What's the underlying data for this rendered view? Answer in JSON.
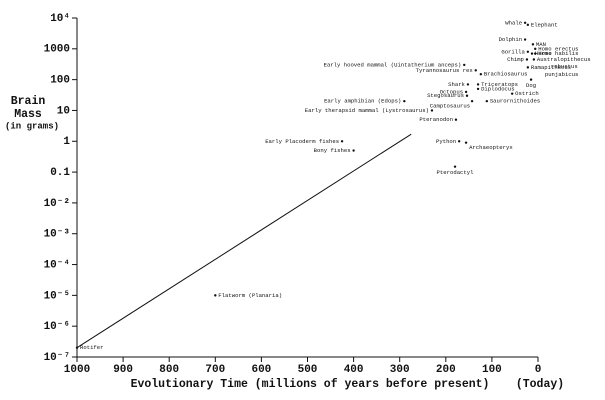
{
  "chart_data": {
    "type": "scatter",
    "ylabel": [
      "Brain",
      "Mass",
      "(in grams)"
    ],
    "xlabel": "Evolutionary Time (millions of years before present)",
    "x_end_note": "(Today)",
    "log_y": true,
    "xlim": [
      1000,
      0
    ],
    "xticks": [
      1000,
      900,
      800,
      700,
      600,
      500,
      400,
      300,
      200,
      100,
      0
    ],
    "ylim": [
      1e-07,
      10000
    ],
    "yticks": [
      {
        "value": 10000,
        "label": "10⁴"
      },
      1000,
      100,
      10,
      1,
      0.1,
      {
        "value": 0.01,
        "label": "10⁻²"
      },
      {
        "value": 0.001,
        "label": "10⁻³"
      },
      {
        "value": 0.0001,
        "label": "10⁻⁴"
      },
      {
        "value": 1e-05,
        "label": "10⁻⁵"
      },
      {
        "value": 1e-06,
        "label": "10⁻⁶"
      },
      {
        "value": 1e-07,
        "label": "10⁻⁷"
      }
    ],
    "color": "#111111",
    "point_labels": [
      "Rotifer",
      "Flatworm (Planaria)",
      "Bony fishes",
      "Early Placoderm fishes",
      "Early amphibian (Edops)",
      "Early therapsid mammal (Lystrosaurus)",
      "Early hooved mammal (Uintatherium anceps)",
      "Tyrannosaurus rex",
      "Brachiosaurus",
      "Shark",
      "Octopus",
      "Triceratops",
      "Diplodocus",
      "Stegosaurus",
      "Camptosaurus",
      "Saurornithoides",
      "Ostrich",
      "Pteranodon",
      "Python",
      "Archaeopteryx",
      "Pterodactyl",
      "Whale",
      "Elephant",
      "Dolphin",
      "MAN",
      "Gorilla",
      "Horse",
      "Homo erectus",
      "Homo habilis",
      "Chimp",
      [
        "Australopithecus",
        "robustus"
      ],
      [
        "Ramapithecus",
        "punjabicus"
      ],
      "Dog"
    ],
    "x": [
      1000,
      700,
      400,
      425,
      290,
      230,
      160,
      135,
      124,
      152,
      156,
      130,
      130,
      154,
      143,
      111,
      56,
      178,
      171,
      156,
      180,
      28,
      22,
      28,
      11,
      22,
      13,
      6,
      6,
      24,
      9,
      22,
      15
    ],
    "values": [
      2e-07,
      1e-05,
      0.5,
      1,
      20,
      10,
      300,
      200,
      150,
      70,
      40,
      70,
      50,
      30,
      20,
      20,
      35,
      5,
      1,
      0.9,
      0.15,
      7000,
      6000,
      2000,
      1400,
      800,
      700,
      1000,
      700,
      450,
      450,
      250,
      100
    ],
    "trend_line": {
      "x": [
        1000,
        275
      ],
      "values": [
        2e-07,
        1.7
      ]
    }
  }
}
